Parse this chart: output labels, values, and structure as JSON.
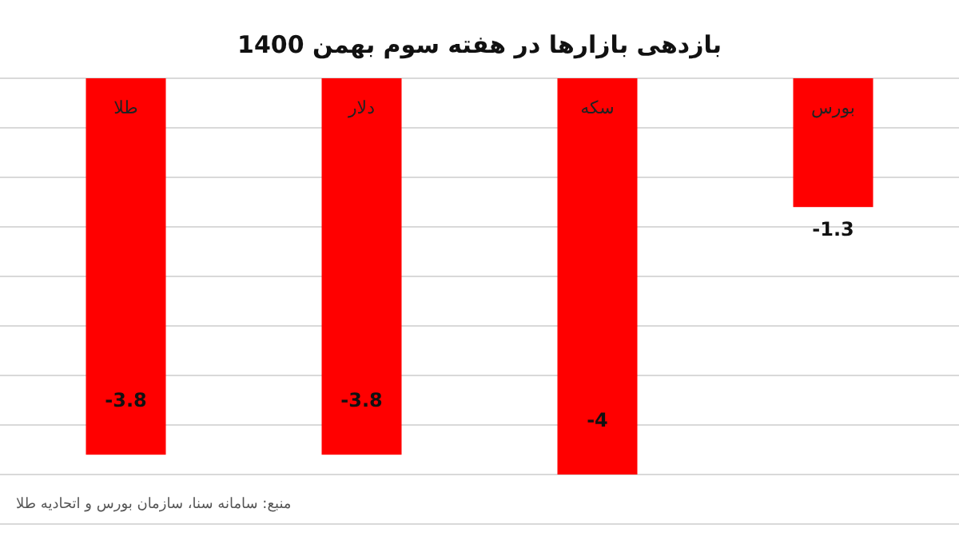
{
  "chart_data": {
    "type": "bar",
    "title": "بازدهی بازارها در هفته سوم بهمن 1400",
    "categories": [
      "طلا",
      "دلار",
      "سکه",
      "بورس"
    ],
    "values": [
      -3.8,
      -3.8,
      -4,
      -1.3
    ],
    "color": "#ff0000",
    "ylim": [
      -4.5,
      0
    ],
    "yticks": [
      {
        "value": 0,
        "label": null
      },
      {
        "value": -0.5,
        "label": null
      },
      {
        "value": -1,
        "label": null
      },
      {
        "value": -1.5,
        "label": null
      },
      {
        "value": -2,
        "label": null
      },
      {
        "value": -2.5,
        "label": null
      },
      {
        "value": -3,
        "label": null
      },
      {
        "value": -3.5,
        "label": null
      },
      {
        "value": -4,
        "label": null
      },
      {
        "value": -4.5,
        "label": null
      }
    ],
    "grid": "y",
    "data_labels": true,
    "annotations": [
      "منبع: سامانه سنا، سازمان بورس و اتحادیه طلا"
    ]
  }
}
